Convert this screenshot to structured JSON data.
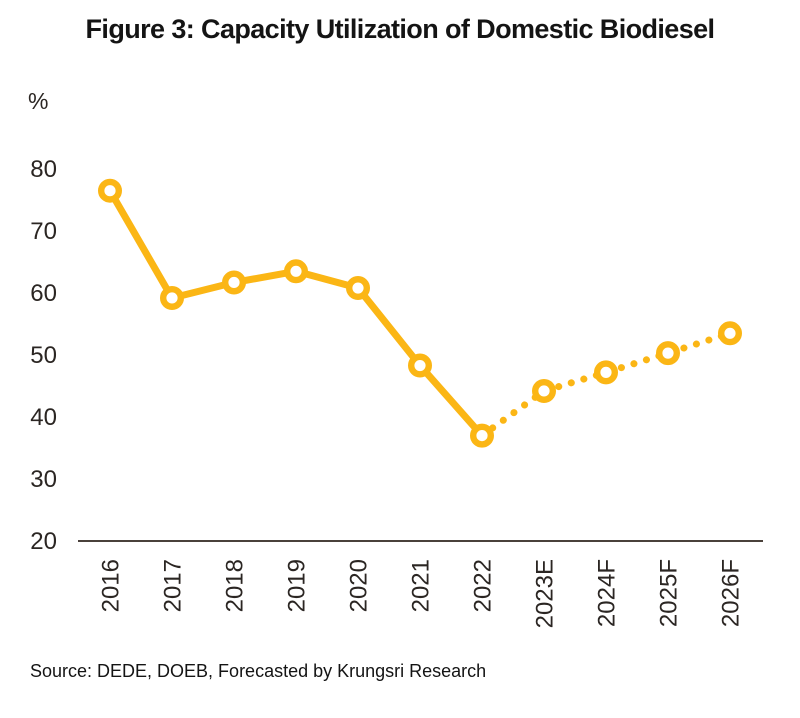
{
  "figure": {
    "title": "Figure 3: Capacity Utilization of Domestic Biodiesel",
    "unit_label": "%",
    "source_note": "Source: DEDE, DOEB, Forecasted by Krungsri Research"
  },
  "colors": {
    "series": "#FBB615",
    "axis_line": "#4A413B",
    "tick_text": "#2B2623"
  },
  "chart_data": {
    "type": "line",
    "title": "Figure 3: Capacity Utilization of Domestic Biodiesel",
    "xlabel": "",
    "ylabel": "%",
    "categories": [
      "2016",
      "2017",
      "2018",
      "2019",
      "2020",
      "2021",
      "2022",
      "2023E",
      "2024F",
      "2025F",
      "2026F"
    ],
    "series": [
      {
        "name": "Capacity utilization of domestic biodiesel (%)",
        "values": [
          76.5,
          59.2,
          61.7,
          63.5,
          60.8,
          48.3,
          37.0,
          44.2,
          47.2,
          50.3,
          53.5
        ],
        "solid_through_index": 6,
        "forecast_style": "dotted",
        "marker": "open-circle"
      }
    ],
    "ylim": [
      20,
      80
    ],
    "yticks": [
      20,
      30,
      40,
      50,
      60,
      70,
      80
    ],
    "grid": false,
    "legend_position": "none",
    "notes": "Values from 2023E onward are estimates/forecasts drawn with a dotted line"
  }
}
